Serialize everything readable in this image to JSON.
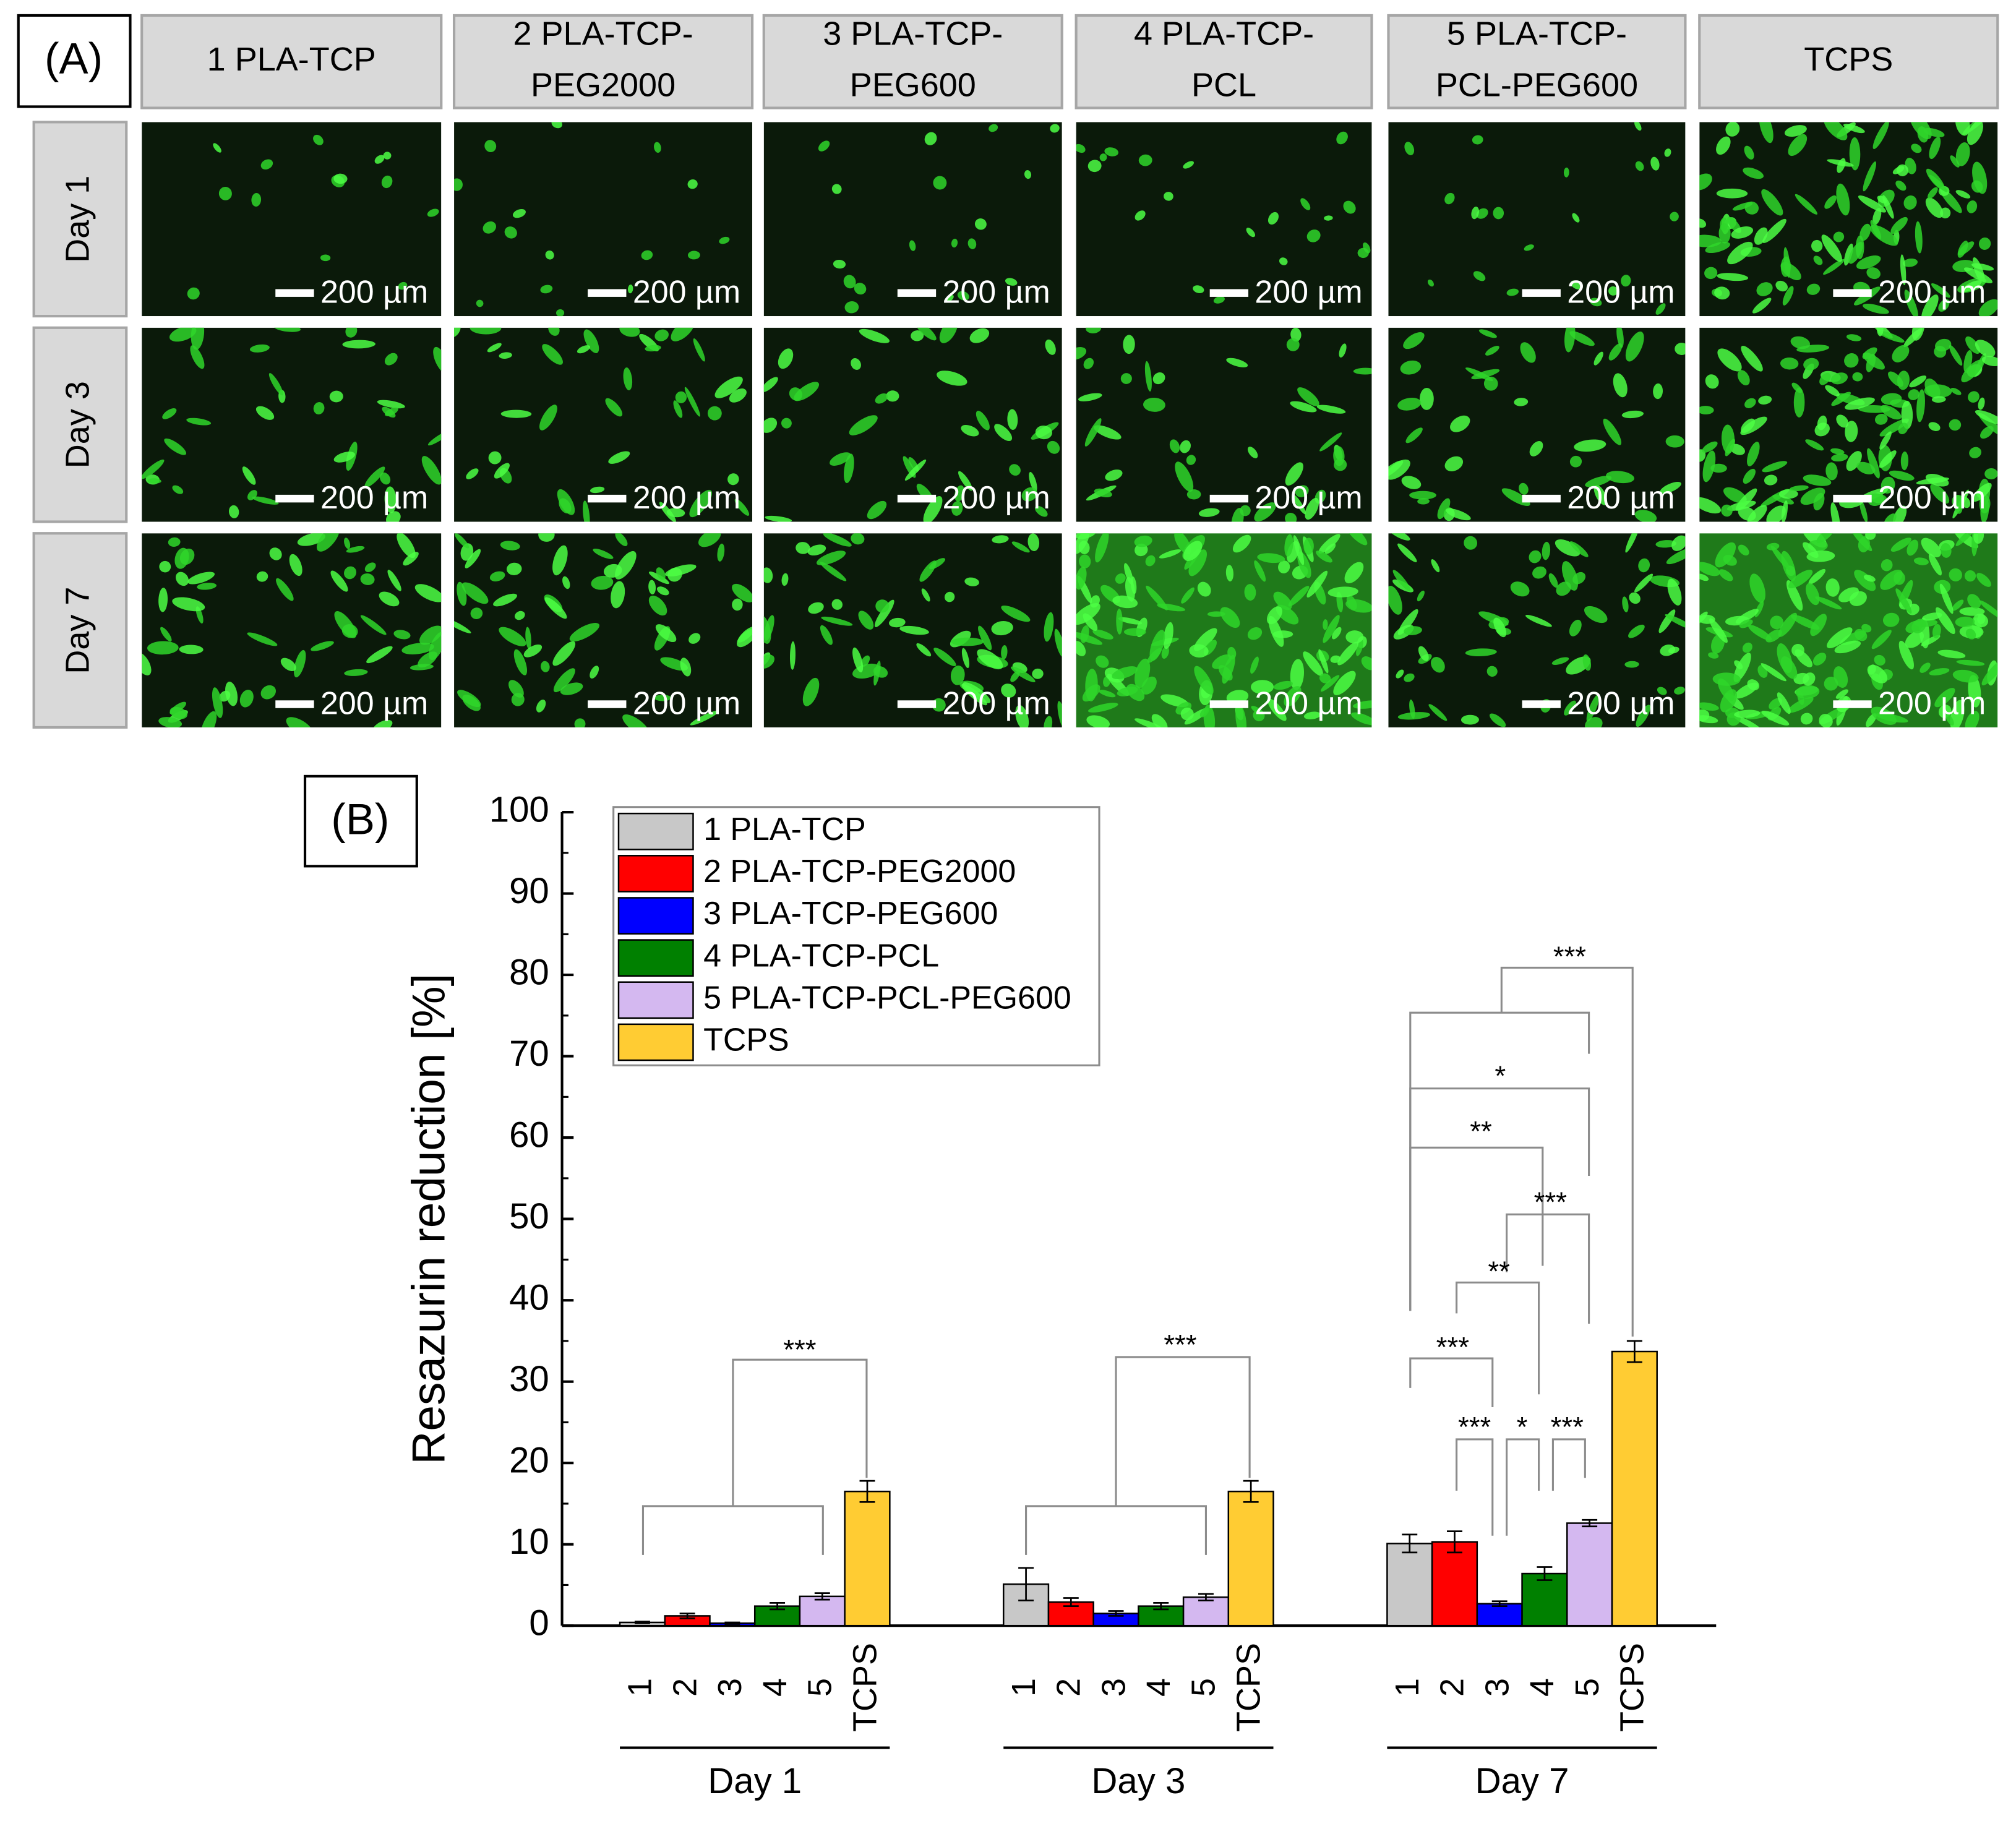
{
  "panel_a": {
    "label": "(A)",
    "columns": [
      [
        "1 PLA-TCP"
      ],
      [
        "2 PLA-TCP-",
        "PEG2000"
      ],
      [
        "3 PLA-TCP-",
        "PEG600"
      ],
      [
        "4 PLA-TCP-",
        "PCL"
      ],
      [
        "5 PLA-TCP-",
        "PCL-PEG600"
      ],
      [
        "TCPS"
      ]
    ],
    "rows": [
      "Day 1",
      "Day 3",
      "Day 7"
    ],
    "scale_bar": "200 µm"
  },
  "chart_data": {
    "type": "bar",
    "panel_label": "(B)",
    "y_label": "Resazurin reduction [%]",
    "categories": [
      "Day 1",
      "Day 3",
      "Day 7"
    ],
    "bar_labels": [
      "1",
      "2",
      "3",
      "4",
      "5",
      "TCPS"
    ],
    "series": [
      {
        "name": "1 PLA-TCP",
        "color": "#c8c8c8",
        "values": [
          0.4,
          5.1,
          10.1
        ],
        "errors": [
          0.1,
          2.0,
          1.1
        ]
      },
      {
        "name": "2 PLA-TCP-PEG2000",
        "color": "#ff0000",
        "values": [
          1.2,
          2.9,
          10.3
        ],
        "errors": [
          0.3,
          0.5,
          1.3
        ]
      },
      {
        "name": "3 PLA-TCP-PEG600",
        "color": "#0000ff",
        "values": [
          0.3,
          1.5,
          2.7
        ],
        "errors": [
          0.1,
          0.3,
          0.3
        ]
      },
      {
        "name": "4 PLA-TCP-PCL",
        "color": "#008000",
        "values": [
          2.4,
          2.4,
          6.4
        ],
        "errors": [
          0.4,
          0.4,
          0.8
        ]
      },
      {
        "name": "5 PLA-TCP-PCL-PEG600",
        "color": "#d4b8f0",
        "values": [
          3.6,
          3.5,
          12.6
        ],
        "errors": [
          0.4,
          0.4,
          0.4
        ]
      },
      {
        "name": "TCPS",
        "color": "#ffcc33",
        "values": [
          16.5,
          16.5,
          33.7
        ],
        "errors": [
          1.3,
          1.3,
          1.3
        ]
      }
    ],
    "ylim": [
      0,
      100
    ],
    "yticks": [
      0,
      10,
      20,
      30,
      40,
      50,
      60,
      70,
      80,
      90,
      100
    ],
    "legend": "upper left",
    "annotations": [
      "***",
      "***",
      "***",
      "*",
      "**",
      "***",
      "**",
      "***",
      "***",
      "*",
      "***"
    ]
  }
}
